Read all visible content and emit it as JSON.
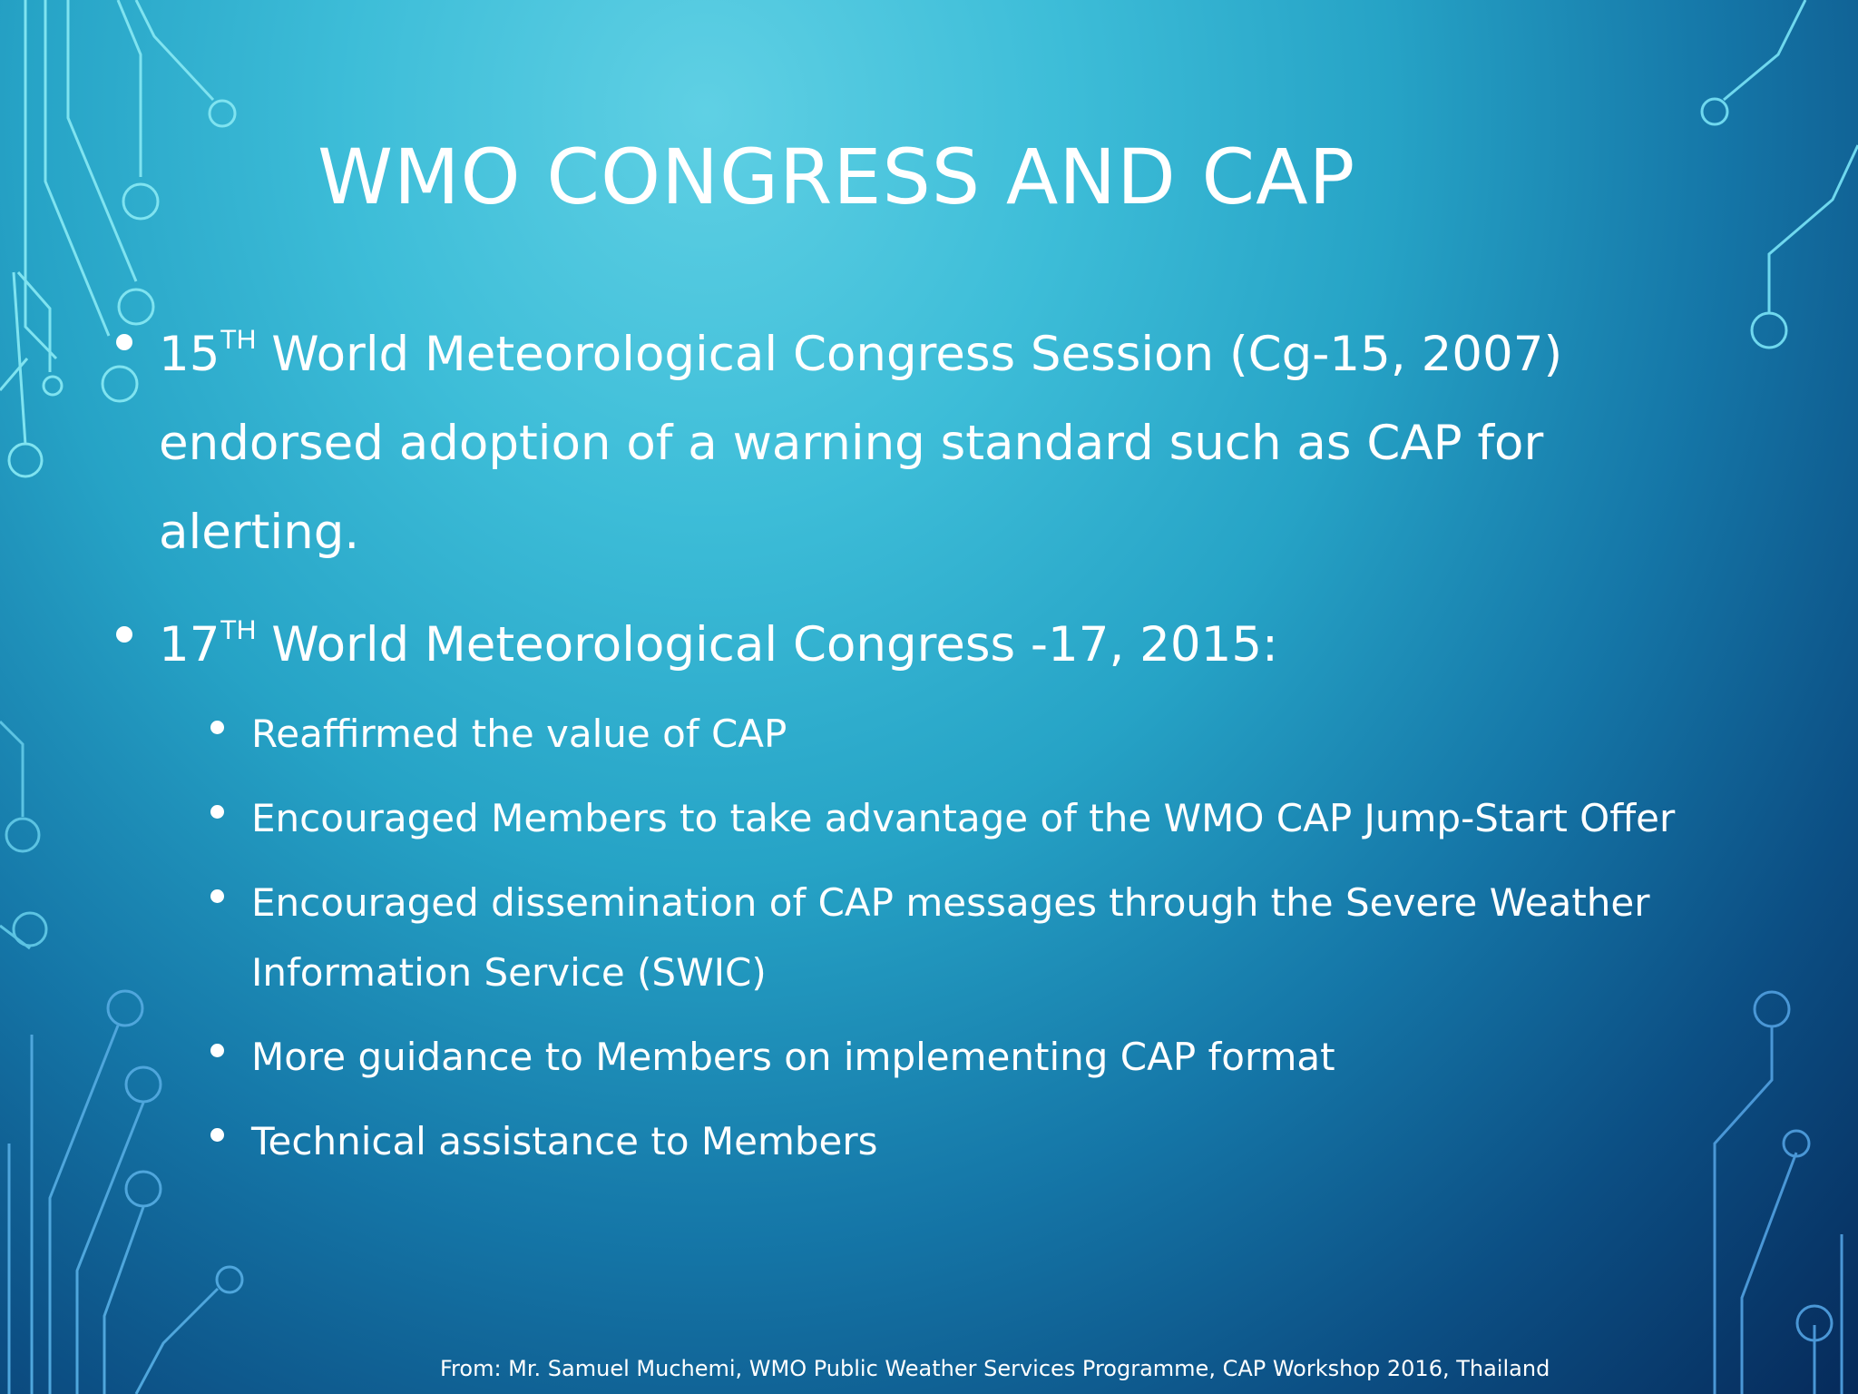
{
  "slide": {
    "title": "WMO CONGRESS AND CAP",
    "bullets": [
      {
        "num": "15",
        "sup": "TH",
        "bold": " World Meteorological Congress Session ",
        "light": "(Cg-15, 2007)",
        "line2": "endorsed adoption of a warning standard such as CAP for",
        "line3": "alerting."
      },
      {
        "num": "17",
        "sup": "TH",
        "bold": " World Meteorological Congress -17, 2015:"
      }
    ],
    "sub_bullets": [
      "Reaffirmed the value of CAP",
      "Encouraged Members to take advantage of the WMO CAP Jump-Start Offer",
      "Encouraged dissemination of CAP messages through the Severe Weather Information Service (SWIC)",
      "More guidance to Members on implementing CAP format",
      "Technical assistance to Members"
    ],
    "footer": "From: Mr. Samuel Muchemi, WMO Public Weather Services Programme, CAP Workshop 2016, Thailand"
  }
}
